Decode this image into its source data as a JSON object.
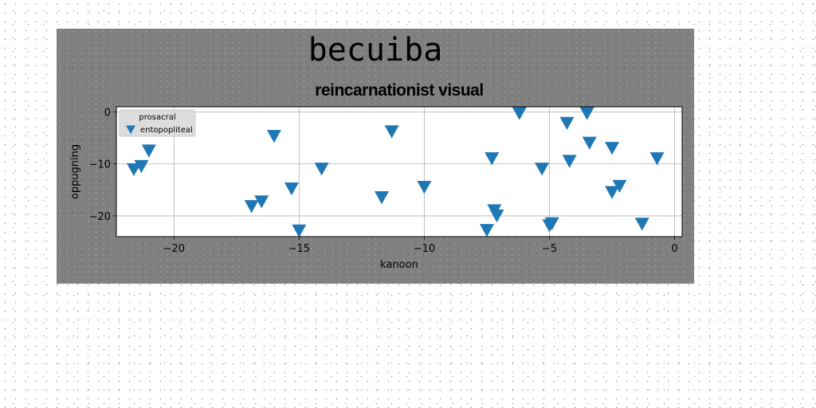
{
  "figure": {
    "suptitle": "becuiba",
    "background": "#808080",
    "page_background": "#ffffff"
  },
  "chart_data": {
    "type": "scatter",
    "title": "reincarnationist visual",
    "xlabel": "kanoon",
    "ylabel": "oppugning",
    "xlim": [
      -22.3,
      0.3
    ],
    "ylim": [
      -24,
      1
    ],
    "xticks": [
      -20,
      -15,
      -10,
      -5,
      0
    ],
    "xtick_labels": [
      "−20",
      "−15",
      "−10",
      "−5",
      "0"
    ],
    "yticks": [
      0,
      -10,
      -20
    ],
    "ytick_labels": [
      "0",
      "−10",
      "−20"
    ],
    "grid": true,
    "legend": {
      "title": "prosacral",
      "position": "top-left"
    },
    "series": [
      {
        "name": "entopopliteal",
        "marker": "triangle-down",
        "color": "#1f77b4",
        "points": [
          {
            "x": -21.6,
            "y": -10.9
          },
          {
            "x": -21.3,
            "y": -10.3
          },
          {
            "x": -21.0,
            "y": -7.3
          },
          {
            "x": -16.9,
            "y": -18.0
          },
          {
            "x": -16.5,
            "y": -17.1
          },
          {
            "x": -16.0,
            "y": -4.5
          },
          {
            "x": -15.3,
            "y": -14.6
          },
          {
            "x": -15.0,
            "y": -22.7
          },
          {
            "x": -14.1,
            "y": -10.8
          },
          {
            "x": -11.7,
            "y": -16.3
          },
          {
            "x": -11.3,
            "y": -3.6
          },
          {
            "x": -10.0,
            "y": -14.3
          },
          {
            "x": -7.5,
            "y": -22.6
          },
          {
            "x": -7.3,
            "y": -8.8
          },
          {
            "x": -7.2,
            "y": -18.8
          },
          {
            "x": -7.1,
            "y": -19.8
          },
          {
            "x": -6.2,
            "y": -0.1
          },
          {
            "x": -5.3,
            "y": -10.8
          },
          {
            "x": -5.0,
            "y": -21.7
          },
          {
            "x": -4.9,
            "y": -21.3
          },
          {
            "x": -4.3,
            "y": -2.0
          },
          {
            "x": -4.2,
            "y": -9.3
          },
          {
            "x": -3.5,
            "y": -0.1
          },
          {
            "x": -3.4,
            "y": -5.8
          },
          {
            "x": -2.5,
            "y": -6.8
          },
          {
            "x": -2.5,
            "y": -15.3
          },
          {
            "x": -2.2,
            "y": -14.1
          },
          {
            "x": -1.3,
            "y": -21.4
          },
          {
            "x": -0.7,
            "y": -8.8
          }
        ]
      }
    ]
  }
}
